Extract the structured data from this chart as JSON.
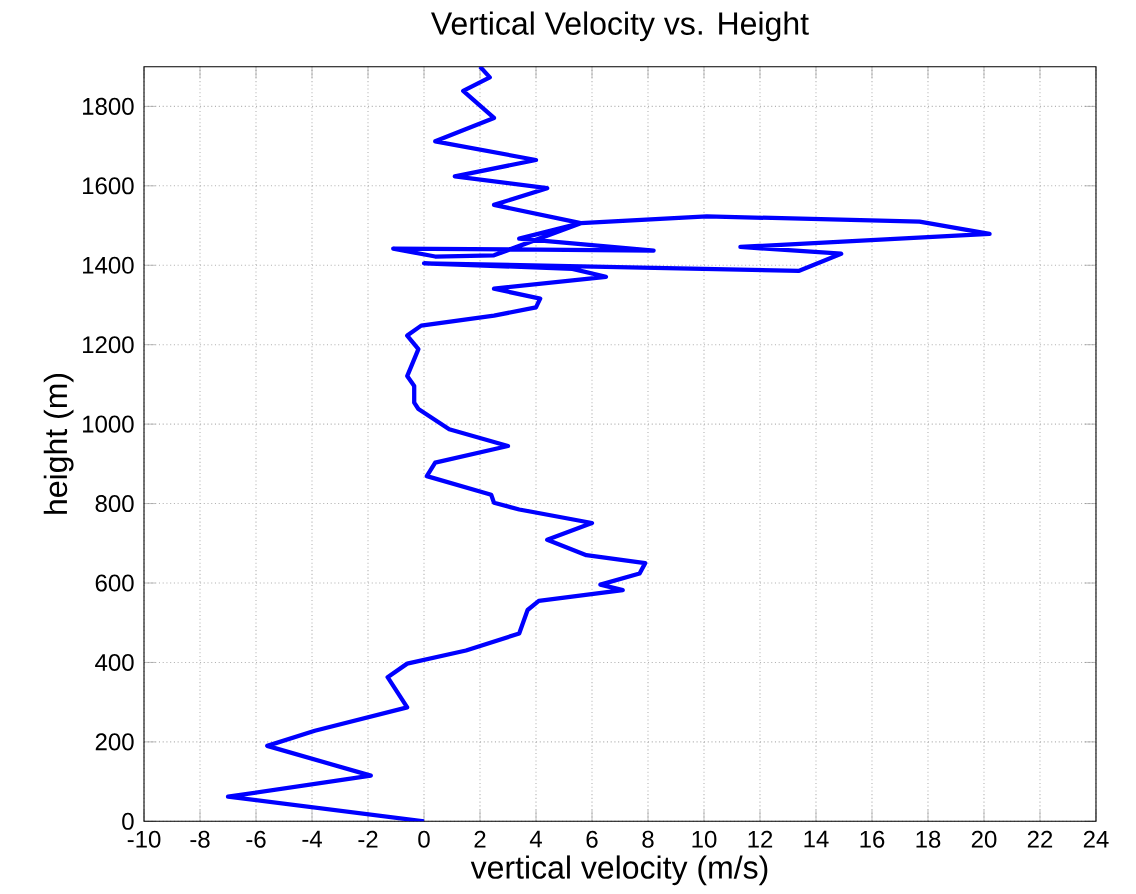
{
  "chart_data": {
    "type": "line",
    "title": "Vertical Velocity vs. Height",
    "xlabel": "vertical velocity (m/s)",
    "ylabel": "height (m)",
    "xlim": [
      -10,
      24
    ],
    "ylim": [
      0,
      1900
    ],
    "xticks": [
      -10,
      -8,
      -6,
      -4,
      -2,
      0,
      2,
      4,
      6,
      8,
      10,
      12,
      14,
      16,
      18,
      20,
      22,
      24
    ],
    "yticks": [
      0,
      200,
      400,
      600,
      800,
      1000,
      1200,
      1400,
      1600,
      1800
    ],
    "grid": true,
    "line_style": "solid",
    "marker": "none",
    "series": [
      {
        "color": "#0000ff",
        "x": [
          0,
          -7.0,
          -1.9,
          -5.6,
          -3.9,
          -0.6,
          -1.3,
          -0.6,
          1.5,
          3.4,
          3.7,
          4.1,
          7.1,
          6.3,
          7.7,
          7.9,
          5.8,
          4.4,
          6.0,
          3.4,
          2.5,
          2.4,
          0.1,
          0.4,
          3.0,
          0.9,
          -0.2,
          -0.35,
          -0.35,
          -0.6,
          -0.2,
          -0.6,
          -0.1,
          2.5,
          4.0,
          4.15,
          2.5,
          6.5,
          5.3,
          0.0,
          13.4,
          14.9,
          11.3,
          20.2,
          17.7,
          10.1,
          5.6,
          3.4,
          8.2,
          -1.1,
          0.4,
          2.5,
          5.6,
          2.5,
          4.4,
          1.1,
          4.0,
          0.4,
          2.5,
          1.4,
          2.35,
          2.0
        ],
        "values": [
          0,
          62,
          115,
          190,
          228,
          287,
          363,
          397,
          430,
          473,
          532,
          555,
          582,
          596,
          624,
          650,
          670,
          709,
          751,
          785,
          802,
          822,
          869,
          903,
          945,
          987,
          1038,
          1054,
          1096,
          1121,
          1189,
          1223,
          1248,
          1273,
          1294,
          1316,
          1341,
          1371,
          1391,
          1405,
          1386,
          1429,
          1446,
          1479,
          1510,
          1523,
          1506,
          1467,
          1437,
          1442,
          1422,
          1425,
          1506,
          1552,
          1594,
          1624,
          1665,
          1712,
          1771,
          1839,
          1873,
          1900
        ]
      }
    ]
  }
}
